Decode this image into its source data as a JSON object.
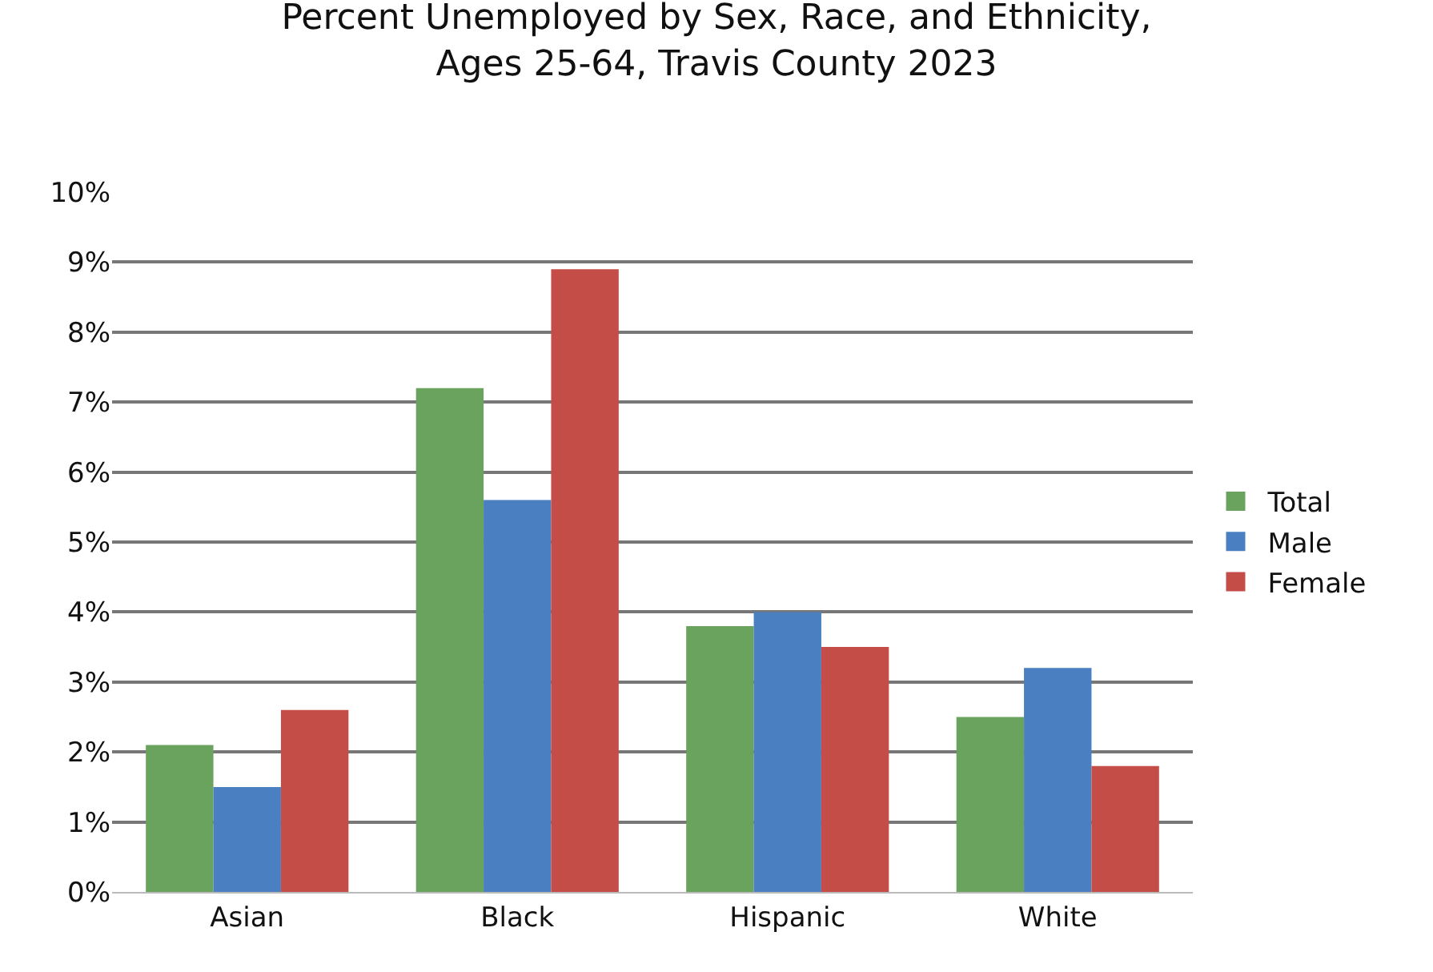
{
  "chart_data": {
    "type": "bar",
    "title": "Percent Unemployed by Sex, Race, and Ethnicity,\nAges 25-64, Travis County 2023",
    "categories": [
      "Asian",
      "Black",
      "Hispanic",
      "White"
    ],
    "series": [
      {
        "name": "Total",
        "color": "#6aa35d",
        "values": [
          2.1,
          7.2,
          3.8,
          2.5
        ]
      },
      {
        "name": "Male",
        "color": "#4a7fc1",
        "values": [
          1.5,
          5.6,
          4.0,
          3.2
        ]
      },
      {
        "name": "Female",
        "color": "#c44d48",
        "values": [
          2.6,
          8.9,
          3.5,
          1.8
        ]
      }
    ],
    "ylim": [
      0,
      10
    ],
    "yticks": [
      {
        "value": 0,
        "label": "0%"
      },
      {
        "value": 1,
        "label": "1%"
      },
      {
        "value": 2,
        "label": "2%"
      },
      {
        "value": 3,
        "label": "3%"
      },
      {
        "value": 4,
        "label": "4%"
      },
      {
        "value": 5,
        "label": "5%"
      },
      {
        "value": 6,
        "label": "6%"
      },
      {
        "value": 7,
        "label": "7%"
      },
      {
        "value": 8,
        "label": "8%"
      },
      {
        "value": 9,
        "label": "9%"
      },
      {
        "value": 10,
        "label": "10%"
      }
    ],
    "grid": "y",
    "legend": "right"
  }
}
